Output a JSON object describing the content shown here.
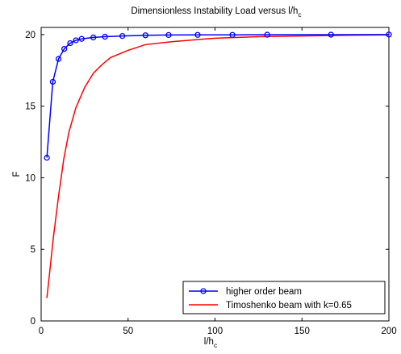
{
  "chart_data": {
    "type": "line",
    "title": {
      "main": "Dimensionless Instability Load versus l/h",
      "sub": "c"
    },
    "xlabel": {
      "main": "l/h",
      "sub": "c"
    },
    "ylabel": "F",
    "xlim": [
      0,
      200
    ],
    "ylim": [
      0,
      20.5
    ],
    "xticks": [
      0,
      50,
      100,
      150,
      200
    ],
    "yticks": [
      0,
      5,
      10,
      15,
      20
    ],
    "grid": false,
    "legend_position": "bottom-right",
    "series": [
      {
        "name": "higher order beam",
        "color": "#0000ff",
        "marker": "circle",
        "x": [
          3.3,
          6.7,
          10,
          13.3,
          16.7,
          20,
          23.3,
          30,
          36.7,
          46.7,
          60,
          73.3,
          90,
          110,
          130,
          166.7,
          200
        ],
        "y": [
          11.4,
          16.7,
          18.3,
          19.0,
          19.4,
          19.6,
          19.7,
          19.8,
          19.85,
          19.9,
          19.95,
          19.97,
          19.98,
          19.98,
          19.99,
          19.99,
          20.0
        ]
      },
      {
        "name": "Timoshenko beam with k=0.65",
        "color": "#ff0000",
        "marker": "none",
        "x": [
          3.3,
          5,
          7,
          10,
          13,
          16,
          20,
          25,
          30,
          35,
          40,
          50,
          60,
          75,
          100,
          125,
          150,
          175,
          200
        ],
        "y": [
          1.6,
          3.5,
          5.8,
          8.7,
          11.3,
          13.2,
          14.9,
          16.3,
          17.3,
          17.9,
          18.4,
          18.9,
          19.3,
          19.5,
          19.75,
          19.85,
          19.9,
          19.95,
          19.98
        ]
      }
    ]
  }
}
